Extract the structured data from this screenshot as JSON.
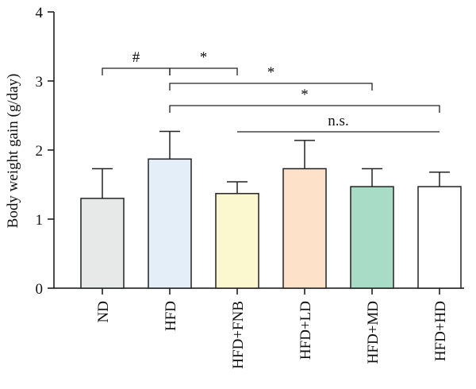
{
  "chart_data": {
    "type": "bar",
    "categories": [
      "ND",
      "HFD",
      "HFD+FNB",
      "HFD+LD",
      "HFD+MD",
      "HFD+HD"
    ],
    "values": [
      1.3,
      1.87,
      1.37,
      1.73,
      1.47,
      1.47
    ],
    "errors": [
      0.43,
      0.4,
      0.17,
      0.41,
      0.26,
      0.21
    ],
    "bar_colors": [
      "#e6e9e7",
      "#e3eef8",
      "#fbf7ce",
      "#fde1c8",
      "#a9dcc6",
      "#ffffff"
    ],
    "ylabel": "Body weight gain (g/day)",
    "ylim": [
      0,
      4
    ],
    "yticks": [
      0,
      1,
      2,
      3,
      4
    ],
    "grid": false,
    "significance": [
      {
        "from": 0,
        "to": 1,
        "label": "#",
        "type": "bracket"
      },
      {
        "from": 1,
        "to": 2,
        "label": "*",
        "type": "bracket"
      },
      {
        "from": 1,
        "to": 4,
        "label": "*",
        "type": "bracket"
      },
      {
        "from": 1,
        "to": 5,
        "label": "*",
        "type": "bracket"
      },
      {
        "from": 2,
        "to": 5,
        "label": "n.s.",
        "type": "line"
      }
    ]
  }
}
